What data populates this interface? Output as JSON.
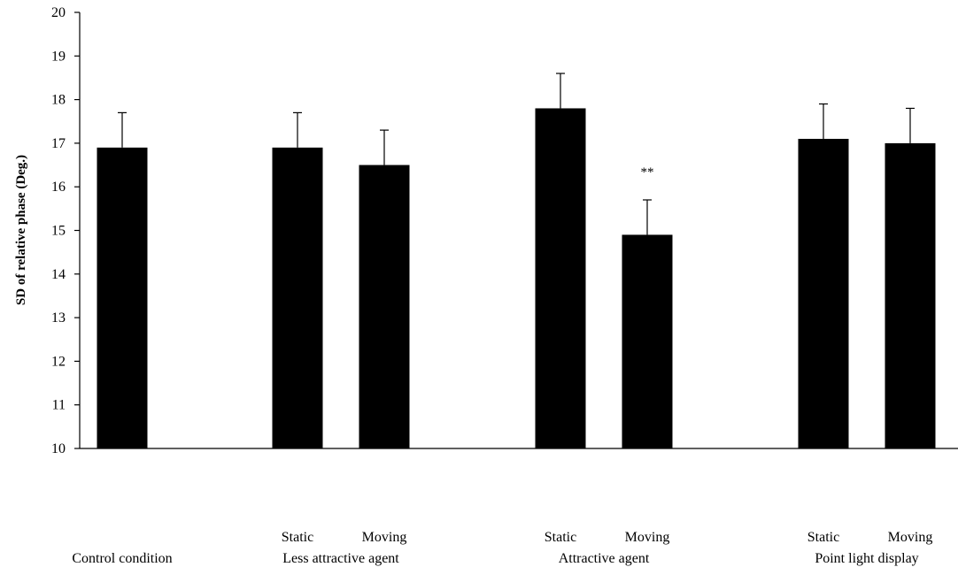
{
  "chart_data": {
    "type": "bar",
    "ylabel": "SD of relative phase (Deg.)",
    "xlabel": "",
    "ylim": [
      10,
      20
    ],
    "yticks": [
      "10",
      "11",
      "12",
      "13",
      "14",
      "15",
      "16",
      "17",
      "18",
      "19",
      "20"
    ],
    "grid": false,
    "legend": "none",
    "bar_color": "#000000",
    "groups": [
      {
        "label": "Control condition",
        "bars": [
          {
            "label": "",
            "value": 16.9,
            "error": 0.8,
            "annotation": ""
          }
        ]
      },
      {
        "label": "Less attractive agent",
        "bars": [
          {
            "label": "Static",
            "value": 16.9,
            "error": 0.8,
            "annotation": ""
          },
          {
            "label": "Moving",
            "value": 16.5,
            "error": 0.8,
            "annotation": ""
          }
        ]
      },
      {
        "label": "Attractive agent",
        "bars": [
          {
            "label": "Static",
            "value": 17.8,
            "error": 0.8,
            "annotation": ""
          },
          {
            "label": "Moving",
            "value": 14.9,
            "error": 0.8,
            "annotation": "**"
          }
        ]
      },
      {
        "label": "Point light display",
        "bars": [
          {
            "label": "Static",
            "value": 17.1,
            "error": 0.8,
            "annotation": ""
          },
          {
            "label": "Moving",
            "value": 17.0,
            "error": 0.8,
            "annotation": ""
          }
        ]
      }
    ]
  }
}
